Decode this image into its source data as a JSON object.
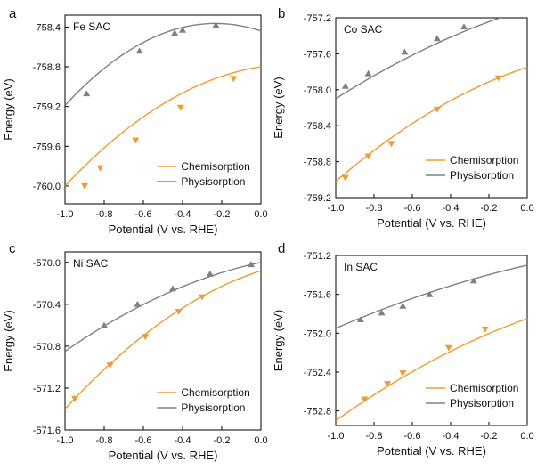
{
  "colors": {
    "chemisorption": "#f39a2e",
    "physisorption": "#808080",
    "axis": "#000000"
  },
  "chart_data": [
    {
      "type": "line",
      "panel_label": "a",
      "title": "Fe SAC",
      "xlabel": "Potential (V vs. RHE)",
      "ylabel": "Energy (eV)",
      "xlim": [
        -1.0,
        0.0
      ],
      "ylim": [
        -760.18,
        -758.28
      ],
      "xticks": [
        "-1.0",
        "-0.8",
        "-0.6",
        "-0.4",
        "-0.2",
        "0.0"
      ],
      "xtick_values": [
        -1.0,
        -0.8,
        -0.6,
        -0.4,
        -0.2,
        0.0
      ],
      "yticks": [
        "-758.4",
        "-758.8",
        "-759.2",
        "-759.6",
        "-760.0"
      ],
      "ytick_values": [
        -758.4,
        -758.8,
        -759.2,
        -759.6,
        -760.0
      ],
      "grid": false,
      "legend_position": "bottom-right",
      "series": [
        {
          "name": "Chemisorption",
          "color_key": "chemisorption",
          "marker": "triangle-down",
          "curve": {
            "a": -0.9,
            "b": 0.3,
            "c": -758.8
          },
          "points": [
            {
              "x": -0.9,
              "y": -760.0
            },
            {
              "x": -0.82,
              "y": -759.82
            },
            {
              "x": -0.64,
              "y": -759.54
            },
            {
              "x": -0.41,
              "y": -759.21
            },
            {
              "x": -0.14,
              "y": -758.92
            }
          ]
        },
        {
          "name": "Physisorption",
          "color_key": "physisorption",
          "marker": "triangle-up",
          "curve": {
            "a": -1.4,
            "b": -0.65,
            "c": -758.44
          },
          "points": [
            {
              "x": -0.89,
              "y": -759.07
            },
            {
              "x": -0.62,
              "y": -758.64
            },
            {
              "x": -0.44,
              "y": -758.46
            },
            {
              "x": -0.4,
              "y": -758.43
            },
            {
              "x": -0.23,
              "y": -758.38
            }
          ]
        }
      ]
    },
    {
      "type": "line",
      "panel_label": "b",
      "title": "Co SAC",
      "xlabel": "Potential (V vs. RHE)",
      "ylabel": "Energy (eV)",
      "xlim": [
        -1.0,
        0.0
      ],
      "ylim": [
        -759.2,
        -757.2
      ],
      "xticks": [
        "-1.0",
        "-0.8",
        "-0.6",
        "-0.4",
        "-0.2",
        "0.0"
      ],
      "xtick_values": [
        -1.0,
        -0.8,
        -0.6,
        -0.4,
        -0.2,
        0.0
      ],
      "yticks": [
        "-757.2",
        "-757.6",
        "-758.0",
        "-758.4",
        "-758.8",
        "-759.2"
      ],
      "ytick_values": [
        -757.2,
        -757.6,
        -758.0,
        -758.4,
        -758.8,
        -759.2
      ],
      "grid": false,
      "legend_position": "bottom-right",
      "series": [
        {
          "name": "Chemisorption",
          "color_key": "chemisorption",
          "marker": "triangle-down",
          "curve": {
            "a": -0.57,
            "b": 0.7,
            "c": -757.75
          },
          "points": [
            {
              "x": -0.95,
              "y": -758.98
            },
            {
              "x": -0.83,
              "y": -758.74
            },
            {
              "x": -0.71,
              "y": -758.6
            },
            {
              "x": -0.47,
              "y": -758.22
            },
            {
              "x": -0.15,
              "y": -757.87
            }
          ]
        },
        {
          "name": "Physisorption",
          "color_key": "physisorption",
          "marker": "triangle-up",
          "curve": {
            "a": -0.35,
            "b": 0.65,
            "c": -757.1
          },
          "points": [
            {
              "x": -0.95,
              "y": -757.96
            },
            {
              "x": -0.83,
              "y": -757.82
            },
            {
              "x": -0.64,
              "y": -757.58
            },
            {
              "x": -0.47,
              "y": -757.43
            },
            {
              "x": -0.33,
              "y": -757.3
            }
          ]
        }
      ]
    },
    {
      "type": "line",
      "panel_label": "c",
      "title": "Ni SAC",
      "xlabel": "Potential (V vs. RHE)",
      "ylabel": "Energy (eV)",
      "xlim": [
        -1.0,
        0.0
      ],
      "ylim": [
        -571.6,
        -569.9
      ],
      "xticks": [
        "-1.0",
        "-0.8",
        "-0.6",
        "-0.4",
        "-0.2",
        "0.0"
      ],
      "xtick_values": [
        -1.0,
        -0.8,
        -0.6,
        -0.4,
        -0.2,
        0.0
      ],
      "yticks": [
        "-570.0",
        "-570.4",
        "-570.8",
        "-571.2",
        "-571.6"
      ],
      "ytick_values": [
        -570.0,
        -570.4,
        -570.8,
        -571.2,
        -571.6
      ],
      "grid": false,
      "legend_position": "bottom-right",
      "series": [
        {
          "name": "Chemisorption",
          "color_key": "chemisorption",
          "marker": "triangle-down",
          "curve": {
            "a": -0.72,
            "b": 0.6,
            "c": -570.08
          },
          "points": [
            {
              "x": -0.95,
              "y": -571.3
            },
            {
              "x": -0.77,
              "y": -570.98
            },
            {
              "x": -0.59,
              "y": -570.71
            },
            {
              "x": -0.42,
              "y": -570.47
            },
            {
              "x": -0.3,
              "y": -570.33
            }
          ]
        },
        {
          "name": "Physisorption",
          "color_key": "physisorption",
          "marker": "triangle-up",
          "curve": {
            "a": -0.45,
            "b": 0.4,
            "c": -570.0
          },
          "points": [
            {
              "x": -0.8,
              "y": -570.6
            },
            {
              "x": -0.63,
              "y": -570.4
            },
            {
              "x": -0.45,
              "y": -570.25
            },
            {
              "x": -0.26,
              "y": -570.11
            },
            {
              "x": -0.05,
              "y": -570.02
            }
          ]
        }
      ]
    },
    {
      "type": "line",
      "panel_label": "d",
      "title": "In SAC",
      "xlabel": "Potential (V vs. RHE)",
      "ylabel": "Energy (eV)",
      "xlim": [
        -1.0,
        0.0
      ],
      "ylim": [
        -752.95,
        -751.2
      ],
      "xticks": [
        "-1.0",
        "-0.8",
        "-0.6",
        "-0.4",
        "-0.2",
        "0.0"
      ],
      "xtick_values": [
        -1.0,
        -0.8,
        -0.6,
        -0.4,
        -0.2,
        0.0
      ],
      "yticks": [
        "-751.2",
        "-751.6",
        "-752.0",
        "-752.4",
        "-752.8"
      ],
      "ytick_values": [
        -751.2,
        -751.6,
        -752.0,
        -752.4,
        -752.8
      ],
      "grid": false,
      "legend_position": "bottom-right",
      "series": [
        {
          "name": "Chemisorption",
          "color_key": "chemisorption",
          "marker": "triangle-down",
          "curve": {
            "a": -0.35,
            "b": 0.7,
            "c": -751.85
          },
          "points": [
            {
              "x": -0.85,
              "y": -752.68
            },
            {
              "x": -0.73,
              "y": -752.52
            },
            {
              "x": -0.65,
              "y": -752.41
            },
            {
              "x": -0.41,
              "y": -752.15
            },
            {
              "x": -0.22,
              "y": -751.96
            }
          ]
        },
        {
          "name": "Physisorption",
          "color_key": "physisorption",
          "marker": "triangle-up",
          "curve": {
            "a": -0.2,
            "b": 0.45,
            "c": -751.3
          },
          "points": [
            {
              "x": -0.87,
              "y": -751.86
            },
            {
              "x": -0.76,
              "y": -751.79
            },
            {
              "x": -0.65,
              "y": -751.72
            },
            {
              "x": -0.51,
              "y": -751.6
            },
            {
              "x": -0.28,
              "y": -751.46
            }
          ]
        }
      ]
    }
  ]
}
